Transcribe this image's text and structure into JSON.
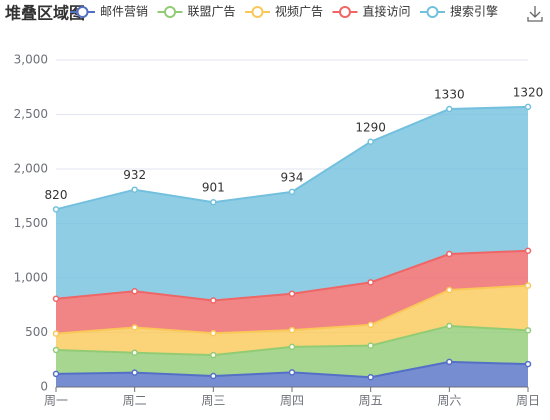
{
  "chart_data": {
    "type": "area",
    "title": "堆叠区域图",
    "stacked": true,
    "grid": true,
    "legend": "top",
    "categories": [
      "周一",
      "周二",
      "周三",
      "周四",
      "周五",
      "周六",
      "周日"
    ],
    "ylim": [
      0,
      3000
    ],
    "yticks": [
      0,
      500,
      {
        "value": 1000,
        "label": "1,000"
      },
      {
        "value": 1500,
        "label": "1,500"
      },
      {
        "value": 2000,
        "label": "2,000"
      },
      {
        "value": 2500,
        "label": "2,500"
      },
      {
        "value": 3000,
        "label": "3,000"
      }
    ],
    "series": [
      {
        "name": "邮件营销",
        "color": "#5470c6",
        "values": [
          120,
          132,
          101,
          134,
          90,
          230,
          210
        ]
      },
      {
        "name": "联盟广告",
        "color": "#91cc75",
        "values": [
          220,
          182,
          191,
          234,
          290,
          330,
          310
        ]
      },
      {
        "name": "视频广告",
        "color": "#fac858",
        "values": [
          150,
          232,
          201,
          154,
          190,
          330,
          410
        ]
      },
      {
        "name": "直接访问",
        "color": "#ee6666",
        "values": [
          320,
          332,
          301,
          334,
          390,
          330,
          320
        ]
      },
      {
        "name": "搜索引擎",
        "color": "#73c0de",
        "values": [
          820,
          932,
          901,
          934,
          1290,
          1330,
          1320
        ],
        "show_labels": true
      }
    ]
  }
}
